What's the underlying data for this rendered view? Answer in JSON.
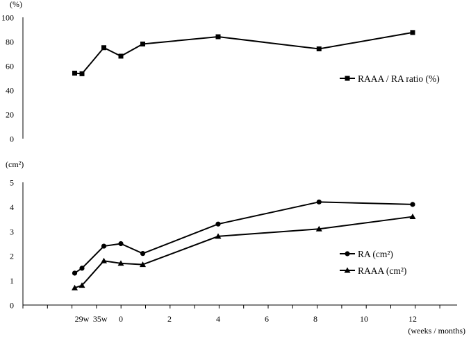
{
  "chart_data": [
    {
      "type": "line",
      "title": "",
      "ylabel": "(%)",
      "ylim": [
        0,
        100
      ],
      "yticks": [
        0,
        20,
        40,
        60,
        80,
        100
      ],
      "grid": false,
      "legend_position": "right",
      "series": [
        {
          "name": "RAAA / RA ratio (%)",
          "marker": "square",
          "x": [
            -1.9,
            -1.6,
            -0.7,
            0,
            0.9,
            4,
            8.15,
            12
          ],
          "values": [
            54,
            53.5,
            75,
            68,
            78,
            84,
            74,
            87.5
          ]
        }
      ]
    },
    {
      "type": "line",
      "title": "",
      "ylabel": "(cm²)",
      "xlabel": "(weeks / months)",
      "ylim": [
        0,
        5
      ],
      "yticks": [
        0,
        1,
        2,
        3,
        4,
        5
      ],
      "grid": false,
      "legend_position": "right",
      "x_tick_labels": [
        "29w",
        "35w",
        "0",
        "2",
        "4",
        "6",
        "8",
        "10",
        "12"
      ],
      "series": [
        {
          "name": "RA (cm²)",
          "marker": "circle",
          "x": [
            -1.9,
            -1.6,
            -0.7,
            0,
            0.9,
            4,
            8.15,
            12
          ],
          "values": [
            1.3,
            1.5,
            2.4,
            2.5,
            2.1,
            3.3,
            4.2,
            4.1
          ]
        },
        {
          "name": "RAAA (cm²)",
          "marker": "triangle",
          "x": [
            -1.9,
            -1.6,
            -0.7,
            0,
            0.9,
            4,
            8.15,
            12
          ],
          "values": [
            0.7,
            0.8,
            1.8,
            1.7,
            1.65,
            2.8,
            3.1,
            3.6
          ]
        }
      ]
    }
  ]
}
